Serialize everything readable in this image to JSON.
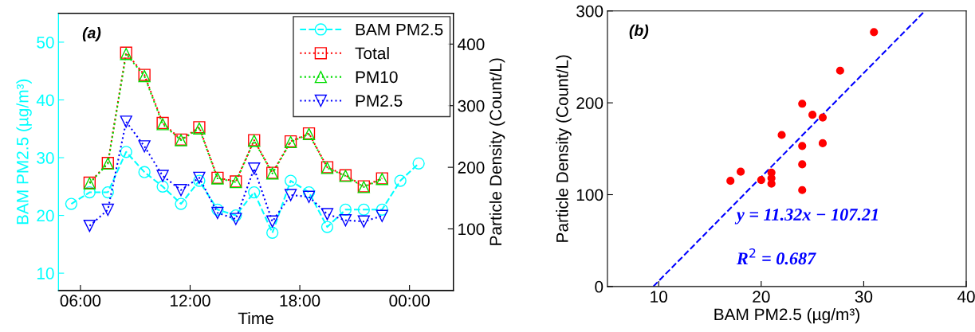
{
  "chart_data": [
    {
      "type": "line",
      "xlabel": "Time",
      "ylabel": "BAM PM2.5 (µg/m³)",
      "y2label": "Particle Density (Count/L)",
      "annotations": [
        "(a)"
      ],
      "xlim": [
        4.8,
        26.4
      ],
      "xticks": [
        {
          "value": 6,
          "label": "06:00"
        },
        {
          "value": 12,
          "label": "12:00"
        },
        {
          "value": 18,
          "label": "18:00"
        },
        {
          "value": 24,
          "label": "00:00"
        }
      ],
      "ylim": [
        7,
        55
      ],
      "yticks": [
        10,
        20,
        30,
        40,
        50
      ],
      "y2lim": [
        0,
        450
      ],
      "y2ticks": [
        100,
        200,
        300,
        400
      ],
      "legend": "top right",
      "grid": false,
      "series": [
        {
          "name": "BAM PM2.5",
          "color": "#00ffff",
          "axis": "y",
          "marker": "circle",
          "line_style": "dashed",
          "x": [
            5.5,
            6.5,
            7.5,
            8.5,
            9.5,
            10.5,
            11.5,
            12.5,
            13.5,
            14.5,
            15.5,
            16.5,
            17.5,
            18.5,
            19.5,
            20.5,
            21.5,
            22.5,
            23.5,
            24.5
          ],
          "values": [
            22,
            24,
            24,
            31,
            27.5,
            25,
            22,
            26,
            21,
            20,
            24,
            17,
            26,
            24,
            18,
            21,
            21,
            21,
            26,
            29
          ]
        },
        {
          "name": "Total",
          "color": "#ff0000",
          "axis": "y2",
          "marker": "square",
          "line_style": "dotted",
          "x": [
            6.5,
            7.5,
            8.5,
            9.5,
            10.5,
            11.5,
            12.5,
            13.5,
            14.5,
            15.5,
            16.5,
            17.5,
            18.5,
            19.5,
            20.5,
            21.5,
            22.5
          ],
          "values": [
            175,
            207,
            386,
            350,
            272,
            245,
            265,
            183,
            177,
            244,
            191,
            242,
            255,
            200,
            187,
            169,
            182
          ]
        },
        {
          "name": "PM10",
          "color": "#00dd00",
          "axis": "y2",
          "marker": "triangle",
          "line_style": "dotted",
          "x": [
            6.5,
            7.5,
            8.5,
            9.5,
            10.5,
            11.5,
            12.5,
            13.5,
            14.5,
            15.5,
            16.5,
            17.5,
            18.5,
            19.5,
            20.5,
            21.5,
            22.5
          ],
          "values": [
            174,
            206,
            384,
            348,
            270,
            244,
            263,
            182,
            176,
            243,
            190,
            241,
            254,
            199,
            186,
            168,
            181
          ]
        },
        {
          "name": "PM2.5",
          "color": "#0000ff",
          "axis": "y2",
          "marker": "triangle_down",
          "line_style": "dotted",
          "x": [
            6.5,
            7.5,
            8.5,
            9.5,
            10.5,
            11.5,
            12.5,
            13.5,
            14.5,
            15.5,
            16.5,
            17.5,
            18.5,
            19.5,
            20.5,
            21.5,
            22.5
          ],
          "values": [
            105,
            131,
            274,
            234,
            186,
            163,
            183,
            126,
            116,
            198,
            112,
            155,
            152,
            124,
            114,
            112,
            121
          ]
        }
      ]
    },
    {
      "type": "scatter",
      "xlabel": "BAM PM2.5 (µg/m³)",
      "ylabel": "Particle Density (Count/L)",
      "annotations": [
        "(b)",
        "y = 11.32x − 107.21",
        "R$^{2}$ = 0.687"
      ],
      "xlim": [
        5,
        40
      ],
      "xticks": [
        10,
        20,
        30,
        40
      ],
      "ylim": [
        0,
        300
      ],
      "yticks": [
        0,
        100,
        200,
        300
      ],
      "grid": false,
      "series": [
        {
          "color": "#ff0000",
          "marker": "circle",
          "x": [
            17,
            18,
            20,
            21,
            21,
            22,
            24,
            24,
            24,
            24,
            25,
            26,
            26,
            27.7,
            31,
            21
          ],
          "values": [
            115,
            125,
            116,
            124,
            112,
            165,
            199,
            153,
            133,
            105,
            187,
            184,
            156,
            235,
            277,
            118
          ]
        },
        {
          "type": "line",
          "color": "#0000ff",
          "line_style": "dashed",
          "marker": "none",
          "x": [
            9.47,
            35.97
          ],
          "values": [
            0,
            300
          ]
        }
      ]
    }
  ]
}
